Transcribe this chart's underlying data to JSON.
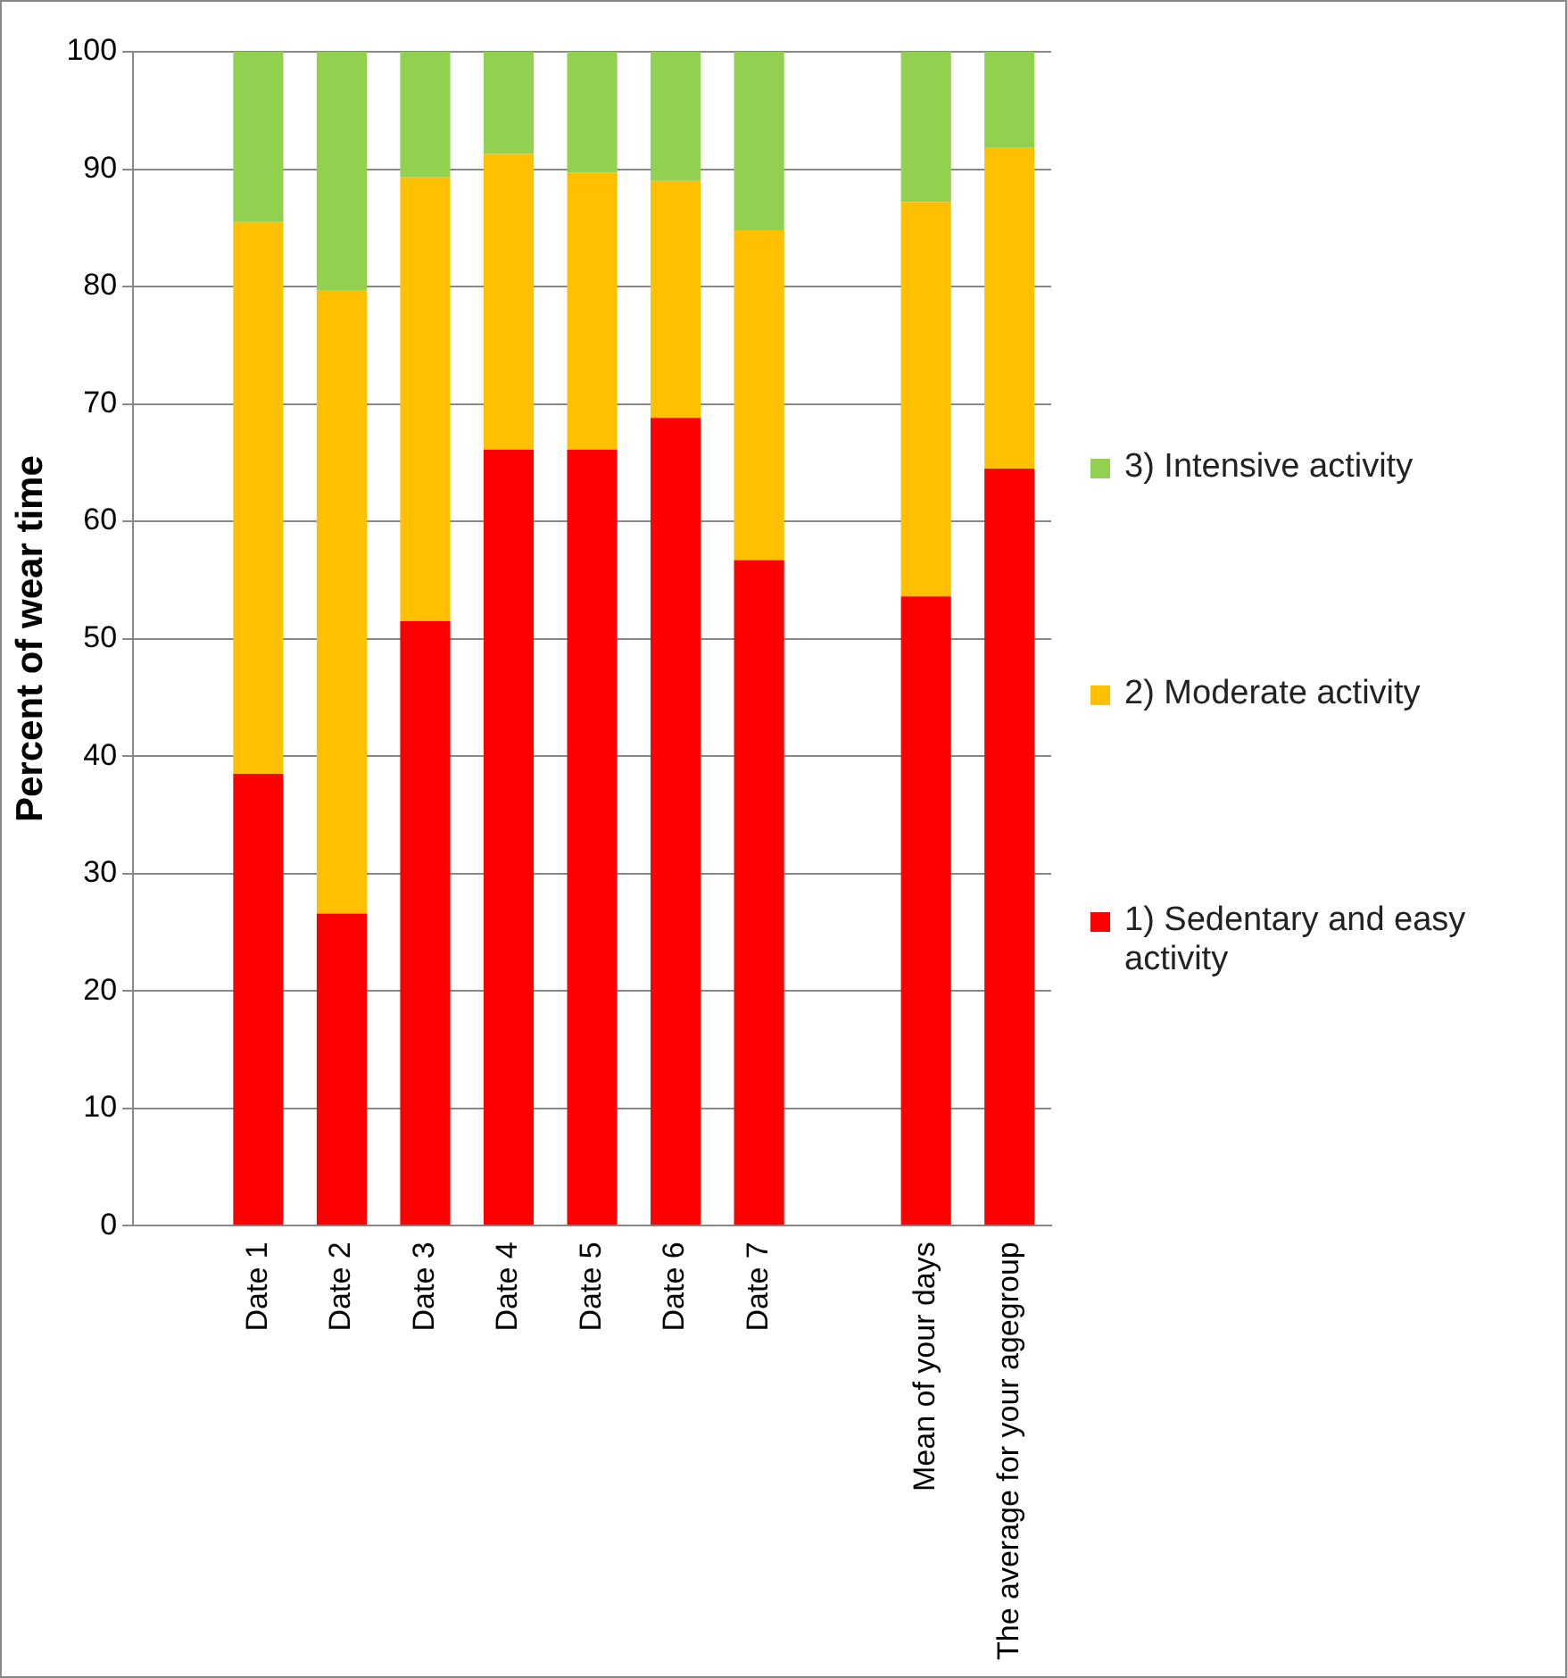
{
  "chart_data": {
    "type": "bar",
    "stacked": true,
    "ylabel": "Percent of wear time",
    "categories": [
      null,
      "Date 1",
      "Date 2",
      "Date 3",
      "Date 4",
      "Date 5",
      "Date 6",
      "Date 7",
      null,
      "Mean of your days",
      "The average for your agegroup"
    ],
    "series": [
      {
        "name": "1) Sedentary and easy activity",
        "color": "#ff0000",
        "values": [
          null,
          38.5,
          26.6,
          51.5,
          66.1,
          66.1,
          68.8,
          56.7,
          null,
          53.6,
          64.5
        ]
      },
      {
        "name": "2) Moderate activity",
        "color": "#ffc000",
        "values": [
          null,
          47.0,
          53.1,
          37.8,
          25.2,
          23.6,
          20.2,
          28.1,
          null,
          33.6,
          27.3
        ]
      },
      {
        "name": "3) Intensive activity",
        "color": "#92d050",
        "values": [
          null,
          14.5,
          20.3,
          10.7,
          8.7,
          10.3,
          11.0,
          15.2,
          null,
          12.8,
          8.2
        ]
      }
    ],
    "ylim": [
      0,
      100
    ],
    "yticks": [
      0,
      10,
      20,
      30,
      40,
      50,
      60,
      70,
      80,
      90,
      100
    ],
    "grid": "y",
    "legend": "right"
  }
}
